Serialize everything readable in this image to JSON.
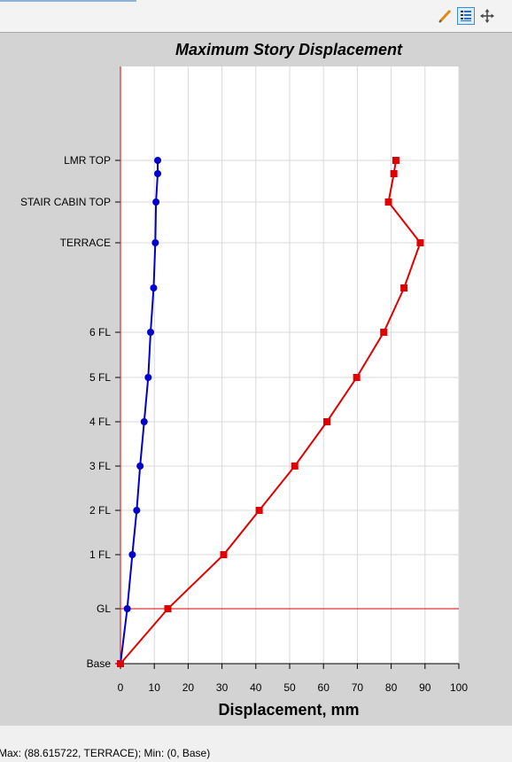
{
  "toolbar": {
    "tools": [
      {
        "name": "pencil-icon"
      },
      {
        "name": "legend-list-icon"
      },
      {
        "name": "move-arrows-icon"
      }
    ]
  },
  "chart_data": {
    "type": "line",
    "title": "Maximum Story Displacement",
    "xlabel": "Displacement, mm",
    "ylabel": "",
    "xlim": [
      0,
      100
    ],
    "xticks": [
      0,
      10,
      20,
      30,
      40,
      50,
      60,
      70,
      80,
      90,
      100
    ],
    "story_labels": [
      "Base",
      "GL",
      "1 FL",
      "2 FL",
      "3 FL",
      "4 FL",
      "5 FL",
      "6 FL",
      "",
      "TERRACE",
      "STAIR CABIN TOP",
      "",
      "LMR TOP"
    ],
    "grid": true,
    "ground_level_line": "GL",
    "series": [
      {
        "color": "#0000cc",
        "marker": "circle",
        "points": [
          {
            "x": 0,
            "y": "Base"
          },
          {
            "x": 2,
            "y": "GL"
          },
          {
            "x": 3.5,
            "y": "1 FL"
          },
          {
            "x": 4.8,
            "y": "2 FL"
          },
          {
            "x": 5.8,
            "y": "3 FL"
          },
          {
            "x": 7,
            "y": "4 FL"
          },
          {
            "x": 8.2,
            "y": "5 FL"
          },
          {
            "x": 8.9,
            "y": "6 FL"
          },
          {
            "x": 9.8,
            "y": ""
          },
          {
            "x": 10.3,
            "y": "TERRACE"
          },
          {
            "x": 10.5,
            "y": "STAIR CABIN TOP"
          },
          {
            "x": 11,
            "y": ""
          },
          {
            "x": 11,
            "y": "LMR TOP"
          }
        ]
      },
      {
        "color": "#e00000",
        "marker": "square",
        "points": [
          {
            "x": 0,
            "y": "Base"
          },
          {
            "x": 14,
            "y": "GL"
          },
          {
            "x": 30.5,
            "y": "1 FL"
          },
          {
            "x": 41,
            "y": "2 FL"
          },
          {
            "x": 51.5,
            "y": "3 FL"
          },
          {
            "x": 61,
            "y": "4 FL"
          },
          {
            "x": 69.8,
            "y": "5 FL"
          },
          {
            "x": 77.8,
            "y": "6 FL"
          },
          {
            "x": 83.8,
            "y": ""
          },
          {
            "x": 88.6,
            "y": "TERRACE"
          },
          {
            "x": 79.2,
            "y": "STAIR CABIN TOP"
          },
          {
            "x": 80.8,
            "y": ""
          },
          {
            "x": 81.4,
            "y": "LMR TOP"
          }
        ]
      }
    ]
  },
  "footer": {
    "status_text": "Max: (88.615722, TERRACE);   Min: (0, Base)"
  }
}
